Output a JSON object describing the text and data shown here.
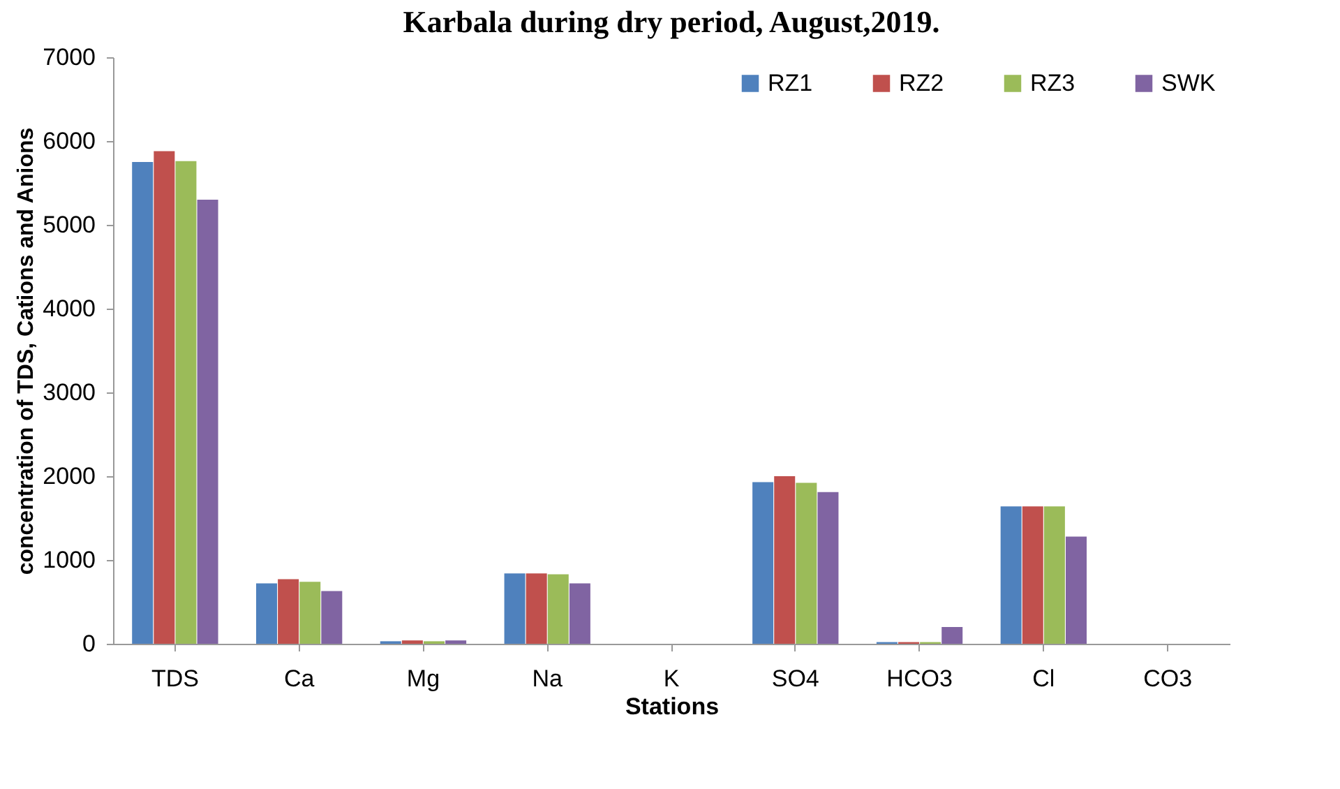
{
  "chart_data": {
    "type": "bar",
    "title": "Karbala during dry period, August,2019.",
    "xlabel": "Stations",
    "ylabel": "concentration of TDS, Cations and Anions",
    "categories": [
      "TDS",
      "Ca",
      "Mg",
      "Na",
      "K",
      "SO4",
      "HCO3",
      "Cl",
      "CO3"
    ],
    "series": [
      {
        "name": "RZ1",
        "color": "#4f81bd",
        "values": [
          5750,
          720,
          30,
          840,
          0,
          1930,
          20,
          1640,
          0
        ]
      },
      {
        "name": "RZ2",
        "color": "#c0504d",
        "values": [
          5880,
          770,
          40,
          840,
          0,
          2000,
          20,
          1640,
          0
        ]
      },
      {
        "name": "RZ3",
        "color": "#9bbb59",
        "values": [
          5760,
          740,
          30,
          830,
          0,
          1920,
          20,
          1640,
          0
        ]
      },
      {
        "name": "SWK",
        "color": "#8064a2",
        "values": [
          5300,
          630,
          40,
          720,
          0,
          1810,
          200,
          1280,
          0
        ]
      }
    ],
    "ylim": [
      0,
      7000
    ],
    "yticks": [
      0,
      1000,
      2000,
      3000,
      4000,
      5000,
      6000,
      7000
    ],
    "legend": "top right"
  }
}
